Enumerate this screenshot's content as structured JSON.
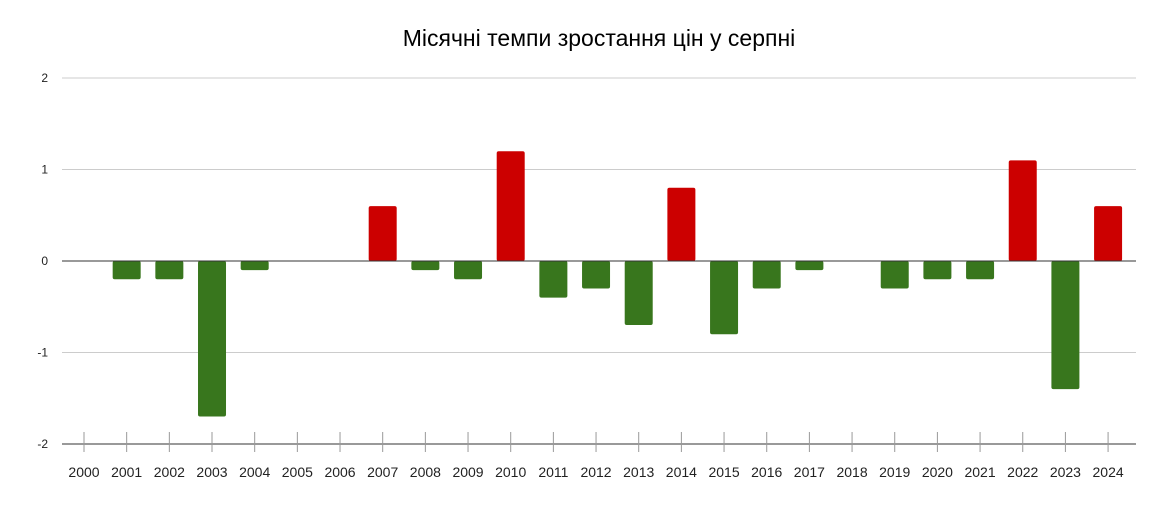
{
  "chart_data": {
    "type": "bar",
    "title": "Місячні темпи зростання цін у серпні",
    "xlabel": "",
    "ylabel": "",
    "ylim": [
      -2,
      2
    ],
    "yticks": [
      "2",
      "1",
      "0",
      "-1",
      "-2"
    ],
    "grid": true,
    "legend": "none",
    "categories": [
      "2000",
      "2001",
      "2002",
      "2003",
      "2004",
      "2005",
      "2006",
      "2007",
      "2008",
      "2009",
      "2010",
      "2011",
      "2012",
      "2013",
      "2014",
      "2015",
      "2016",
      "2017",
      "2018",
      "2019",
      "2020",
      "2021",
      "2022",
      "2023",
      "2024"
    ],
    "values": [
      0,
      -0.2,
      -0.2,
      -1.7,
      -0.1,
      0,
      0,
      0.6,
      -0.1,
      -0.2,
      1.2,
      -0.4,
      -0.3,
      -0.7,
      0.8,
      -0.8,
      -0.3,
      -0.1,
      0,
      -0.3,
      -0.2,
      -0.2,
      1.1,
      -1.4,
      0.6
    ],
    "colors": {
      "positive": "#cc0000",
      "negative": "#38761d"
    }
  }
}
